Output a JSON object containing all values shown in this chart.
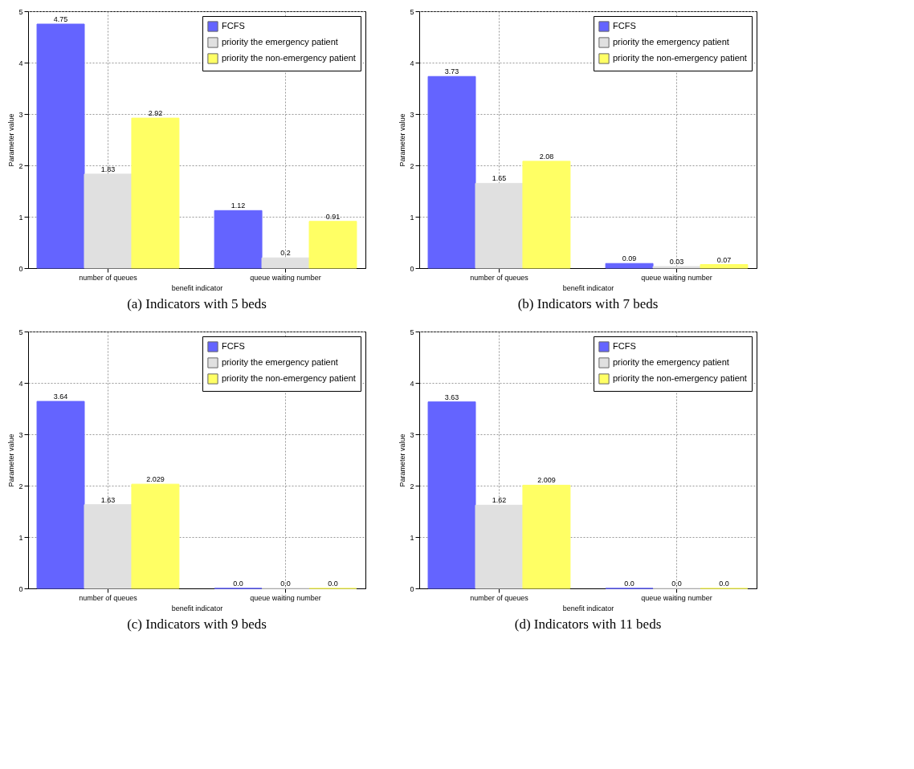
{
  "chart_data": [
    {
      "type": "bar",
      "title": "(a) Indicators with 5 beds",
      "xlabel": "benefit indicator",
      "ylabel": "Parameter value",
      "categories": [
        "number of queues",
        "queue waiting number"
      ],
      "ylim": [
        0,
        5
      ],
      "yticks": [
        0,
        1,
        2,
        3,
        4,
        5
      ],
      "grid": true,
      "legend": "top right",
      "series": [
        {
          "name": "FCFS",
          "color": "#6464ff",
          "values": [
            4.75,
            1.12
          ],
          "value_labels": [
            "4.75",
            "1.12"
          ]
        },
        {
          "name": "priority the emergency patient",
          "color": "#e0e0e0",
          "values": [
            1.83,
            0.2
          ],
          "value_labels": [
            "1.83",
            "0.2"
          ]
        },
        {
          "name": "priority the non-emergency patient",
          "color": "#ffff64",
          "values": [
            2.92,
            0.91
          ],
          "value_labels": [
            "2.92",
            "0.91"
          ]
        }
      ]
    },
    {
      "type": "bar",
      "title": "(b) Indicators with 7 beds",
      "xlabel": "benefit indicator",
      "ylabel": "Parameter value",
      "categories": [
        "number of queues",
        "queue waiting number"
      ],
      "ylim": [
        0,
        5
      ],
      "yticks": [
        0,
        1,
        2,
        3,
        4,
        5
      ],
      "grid": true,
      "legend": "top right",
      "series": [
        {
          "name": "FCFS",
          "color": "#6464ff",
          "values": [
            3.73,
            0.09
          ],
          "value_labels": [
            "3.73",
            "0.09"
          ]
        },
        {
          "name": "priority the emergency patient",
          "color": "#e0e0e0",
          "values": [
            1.65,
            0.03
          ],
          "value_labels": [
            "1.65",
            "0.03"
          ]
        },
        {
          "name": "priority the non-emergency patient",
          "color": "#ffff64",
          "values": [
            2.08,
            0.07
          ],
          "value_labels": [
            "2.08",
            "0.07"
          ]
        }
      ]
    },
    {
      "type": "bar",
      "title": "(c) Indicators with 9 beds",
      "xlabel": "benefit indicator",
      "ylabel": "Parameter value",
      "categories": [
        "number of queues",
        "queue waiting number"
      ],
      "ylim": [
        0,
        5
      ],
      "yticks": [
        0,
        1,
        2,
        3,
        4,
        5
      ],
      "grid": true,
      "legend": "top right",
      "series": [
        {
          "name": "FCFS",
          "color": "#6464ff",
          "values": [
            3.64,
            0
          ],
          "value_labels": [
            "3.64",
            "0.0"
          ]
        },
        {
          "name": "priority the emergency patient",
          "color": "#e0e0e0",
          "values": [
            1.63,
            0
          ],
          "value_labels": [
            "1.63",
            "0.0"
          ]
        },
        {
          "name": "priority the non-emergency patient",
          "color": "#ffff64",
          "values": [
            2.029,
            0
          ],
          "value_labels": [
            "2.029",
            "0.0"
          ]
        }
      ]
    },
    {
      "type": "bar",
      "title": "(d) Indicators with 11 beds",
      "xlabel": "benefit indicator",
      "ylabel": "Parameter value",
      "categories": [
        "number of queues",
        "queue waiting number"
      ],
      "ylim": [
        0,
        5
      ],
      "yticks": [
        0,
        1,
        2,
        3,
        4,
        5
      ],
      "grid": true,
      "legend": "top right",
      "series": [
        {
          "name": "FCFS",
          "color": "#6464ff",
          "values": [
            3.63,
            0
          ],
          "value_labels": [
            "3.63",
            "0.0"
          ]
        },
        {
          "name": "priority the emergency patient",
          "color": "#e0e0e0",
          "values": [
            1.62,
            0
          ],
          "value_labels": [
            "1.62",
            "0.0"
          ]
        },
        {
          "name": "priority the non-emergency patient",
          "color": "#ffff64",
          "values": [
            2.009,
            0
          ],
          "value_labels": [
            "2.009",
            "0.0"
          ]
        }
      ]
    }
  ]
}
